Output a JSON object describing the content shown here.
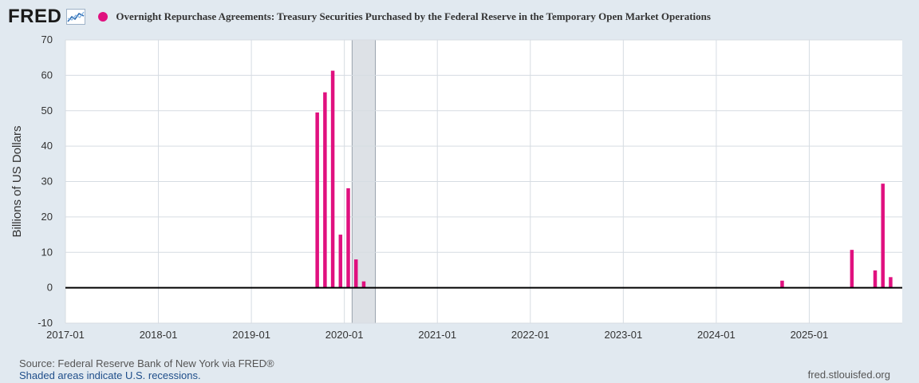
{
  "header": {
    "logo": "FRED",
    "logo_icon": "fred-chart-icon",
    "title": "Overnight Repurchase Agreements: Treasury Securities Purchased by the Federal Reserve in the Temporary Open Market Operations"
  },
  "colors": {
    "series": "#e0117f",
    "background": "#e1e9f0",
    "plot": "#ffffff",
    "recession": "#dde1e6"
  },
  "chart_data": {
    "type": "bar",
    "title": "Overnight Repurchase Agreements: Treasury Securities Purchased by the Federal Reserve in the Temporary Open Market Operations",
    "ylabel": "Billions of US Dollars",
    "ylim": [
      -10,
      70
    ],
    "yticks": [
      -10,
      0,
      10,
      20,
      30,
      40,
      50,
      60,
      70
    ],
    "xlim": [
      "2017-01",
      "2025-12"
    ],
    "xticks": [
      "2017-01",
      "2018-01",
      "2019-01",
      "2020-01",
      "2021-01",
      "2022-01",
      "2023-01",
      "2024-01",
      "2025-01"
    ],
    "grid": true,
    "recession": {
      "start": "2020-02",
      "end": "2020-04"
    },
    "series": [
      {
        "x": [
          "2019-09",
          "2019-10",
          "2019-11",
          "2019-12",
          "2020-01",
          "2020-02",
          "2020-03",
          "2024-09",
          "2025-06",
          "2025-09",
          "2025-10",
          "2025-11"
        ],
        "values": [
          49.5,
          55.2,
          61.3,
          15.0,
          28.1,
          8.0,
          1.8,
          2.0,
          10.7,
          4.9,
          29.4,
          3.0
        ]
      }
    ]
  },
  "footer": {
    "source": "Source: Federal Reserve Bank of New York via FRED®",
    "recession_note": "Shaded areas indicate U.S. recessions.",
    "site": "fred.stlouisfed.org"
  }
}
